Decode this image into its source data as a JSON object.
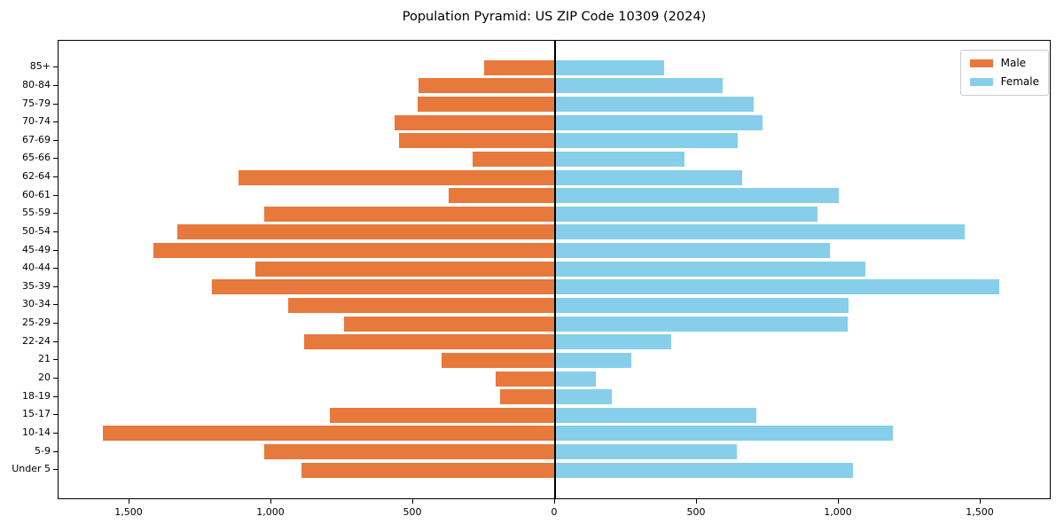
{
  "chart_data": {
    "type": "bar",
    "variant": "population-pyramid",
    "orientation": "horizontal",
    "title": "Population Pyramid: US ZIP Code 10309 (2024)",
    "categories": [
      "85+",
      "80-84",
      "75-79",
      "70-74",
      "67-69",
      "65-66",
      "62-64",
      "60-61",
      "55-59",
      "50-54",
      "45-49",
      "40-44",
      "35-39",
      "30-34",
      "25-29",
      "22-24",
      "21",
      "20",
      "18-19",
      "15-17",
      "10-14",
      "5-9",
      "Under 5"
    ],
    "series": [
      {
        "name": "Male",
        "color": "#e8793c",
        "side": "left",
        "values": [
          250,
          480,
          485,
          565,
          550,
          290,
          1115,
          375,
          1025,
          1330,
          1415,
          1055,
          1210,
          940,
          745,
          885,
          400,
          210,
          195,
          795,
          1595,
          1025,
          895
        ]
      },
      {
        "name": "Female",
        "color": "#87ceeb",
        "side": "right",
        "values": [
          385,
          590,
          700,
          730,
          645,
          455,
          660,
          1000,
          925,
          1445,
          970,
          1095,
          1565,
          1035,
          1030,
          410,
          270,
          145,
          200,
          710,
          1190,
          640,
          1050
        ]
      }
    ],
    "xlim": [
      -1750,
      1750
    ],
    "x_ticks": {
      "values": [
        -1500,
        -1000,
        -500,
        0,
        500,
        1000,
        1500
      ],
      "labels": [
        "1,500",
        "1,000",
        "500",
        "0",
        "500",
        "1,000",
        "1,500"
      ]
    },
    "grid": false,
    "zero_line": true,
    "legend_position": "upper right",
    "colors": {
      "male": "#e8793c",
      "female": "#87ceeb",
      "axis": "#000000",
      "legend_border": "#cccccc",
      "background": "#ffffff"
    }
  }
}
